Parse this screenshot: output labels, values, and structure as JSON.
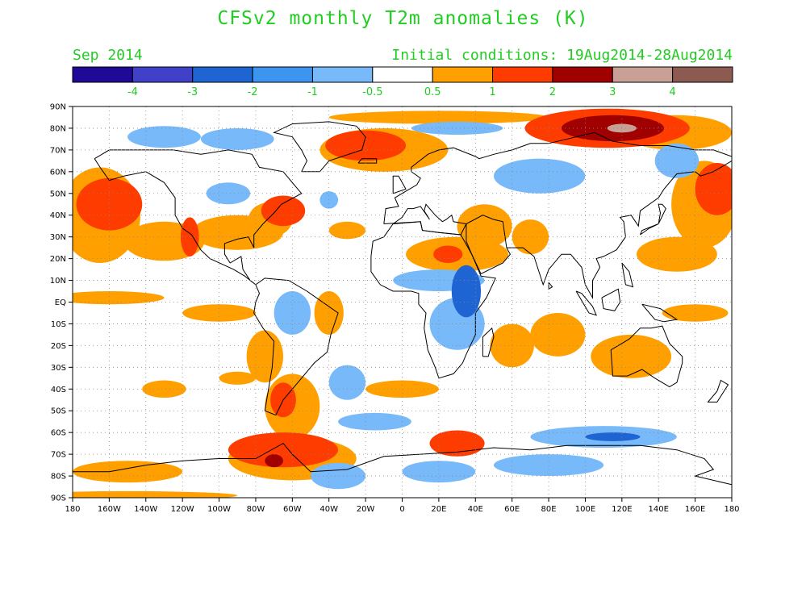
{
  "header": {
    "title": "CFSv2 monthly T2m anomalies (K)",
    "month": "Sep 2014",
    "initial_conditions": "Initial conditions: 19Aug2014-28Aug2014"
  },
  "colorbar": {
    "colors": [
      "#1e0a96",
      "#4040c8",
      "#1e64d2",
      "#3c96f0",
      "#78b9fa",
      "#ffffff",
      "#ffa000",
      "#ff3c00",
      "#a00000",
      "#c8a096",
      "#8c5a50"
    ],
    "labels": [
      "-4",
      "-3",
      "-2",
      "-1",
      "-0.5",
      "0.5",
      "1",
      "2",
      "3",
      "4"
    ],
    "label_color": "#22cc22"
  },
  "axes": {
    "lat_labels": [
      "90N",
      "80N",
      "70N",
      "60N",
      "50N",
      "40N",
      "30N",
      "20N",
      "10N",
      "EQ",
      "10S",
      "20S",
      "30S",
      "40S",
      "50S",
      "60S",
      "70S",
      "80S",
      "90S"
    ],
    "lon_labels": [
      "180",
      "160W",
      "140W",
      "120W",
      "100W",
      "80W",
      "60W",
      "40W",
      "20W",
      "0",
      "20E",
      "40E",
      "60E",
      "80E",
      "100E",
      "120E",
      "140E",
      "160E",
      "180"
    ]
  },
  "anomaly_regions": [
    {
      "lon": -160,
      "lat": 45,
      "rx": 18,
      "ry": 12,
      "level": 2
    },
    {
      "lon": -165,
      "lat": 40,
      "rx": 22,
      "ry": 22,
      "level": 1
    },
    {
      "lon": -130,
      "lat": 28,
      "rx": 22,
      "ry": 9,
      "level": 1
    },
    {
      "lon": -116,
      "lat": 30,
      "rx": 5,
      "ry": 9,
      "level": 2
    },
    {
      "lon": -90,
      "lat": 32,
      "rx": 25,
      "ry": 8,
      "level": 1
    },
    {
      "lon": -65,
      "lat": 42,
      "rx": 12,
      "ry": 7,
      "level": 2
    },
    {
      "lon": -72,
      "lat": 38,
      "rx": 12,
      "ry": 8,
      "level": 1
    },
    {
      "lon": -30,
      "lat": 33,
      "rx": 10,
      "ry": 4,
      "level": 1
    },
    {
      "lon": -20,
      "lat": 72,
      "rx": 22,
      "ry": 7,
      "level": 2
    },
    {
      "lon": -10,
      "lat": 70,
      "rx": 35,
      "ry": 10,
      "level": 1
    },
    {
      "lon": 20,
      "lat": 85,
      "rx": 60,
      "ry": 3,
      "level": 1
    },
    {
      "lon": 115,
      "lat": 80,
      "rx": 28,
      "ry": 6,
      "level": 3
    },
    {
      "lon": 112,
      "lat": 80,
      "rx": 45,
      "ry": 9,
      "level": 2
    },
    {
      "lon": 120,
      "lat": 80,
      "rx": 8,
      "ry": 2,
      "level": 4
    },
    {
      "lon": 150,
      "lat": 78,
      "rx": 30,
      "ry": 8,
      "level": 1
    },
    {
      "lon": 172,
      "lat": 52,
      "rx": 12,
      "ry": 12,
      "level": 2
    },
    {
      "lon": 165,
      "lat": 45,
      "rx": 18,
      "ry": 20,
      "level": 1
    },
    {
      "lon": 150,
      "lat": 22,
      "rx": 22,
      "ry": 8,
      "level": 1
    },
    {
      "lon": 30,
      "lat": 22,
      "rx": 28,
      "ry": 8,
      "level": 1
    },
    {
      "lon": 25,
      "lat": 22,
      "rx": 8,
      "ry": 4,
      "level": 2
    },
    {
      "lon": 45,
      "lat": 35,
      "rx": 15,
      "ry": 10,
      "level": 1
    },
    {
      "lon": 70,
      "lat": 30,
      "rx": 10,
      "ry": 8,
      "level": 1
    },
    {
      "lon": 60,
      "lat": -20,
      "rx": 12,
      "ry": 10,
      "level": 1
    },
    {
      "lon": 85,
      "lat": -15,
      "rx": 15,
      "ry": 10,
      "level": 1
    },
    {
      "lon": 125,
      "lat": -25,
      "rx": 22,
      "ry": 10,
      "level": 1
    },
    {
      "lon": 160,
      "lat": -5,
      "rx": 18,
      "ry": 4,
      "level": 1
    },
    {
      "lon": -160,
      "lat": 2,
      "rx": 30,
      "ry": 3,
      "level": 1
    },
    {
      "lon": -100,
      "lat": -5,
      "rx": 20,
      "ry": 4,
      "level": 1
    },
    {
      "lon": -75,
      "lat": -25,
      "rx": 10,
      "ry": 12,
      "level": 1
    },
    {
      "lon": -65,
      "lat": -45,
      "rx": 7,
      "ry": 8,
      "level": 2
    },
    {
      "lon": -60,
      "lat": -48,
      "rx": 15,
      "ry": 15,
      "level": 1
    },
    {
      "lon": -40,
      "lat": -5,
      "rx": 8,
      "ry": 10,
      "level": 1
    },
    {
      "lon": -130,
      "lat": -40,
      "rx": 12,
      "ry": 4,
      "level": 1
    },
    {
      "lon": -90,
      "lat": -35,
      "rx": 10,
      "ry": 3,
      "level": 1
    },
    {
      "lon": 30,
      "lat": -65,
      "rx": 15,
      "ry": 6,
      "level": 2
    },
    {
      "lon": 0,
      "lat": -40,
      "rx": 20,
      "ry": 4,
      "level": 1
    },
    {
      "lon": -65,
      "lat": -68,
      "rx": 30,
      "ry": 8,
      "level": 2
    },
    {
      "lon": -60,
      "lat": -72,
      "rx": 35,
      "ry": 10,
      "level": 1
    },
    {
      "lon": -70,
      "lat": -73,
      "rx": 5,
      "ry": 3,
      "level": 3
    },
    {
      "lon": -150,
      "lat": -78,
      "rx": 30,
      "ry": 5,
      "level": 1
    },
    {
      "lon": -150,
      "lat": -89,
      "rx": 60,
      "ry": 2,
      "level": 1
    },
    {
      "lon": -130,
      "lat": 76,
      "rx": 20,
      "ry": 5,
      "level": -1
    },
    {
      "lon": -90,
      "lat": 75,
      "rx": 20,
      "ry": 5,
      "level": -1
    },
    {
      "lon": -95,
      "lat": 50,
      "rx": 12,
      "ry": 5,
      "level": -1
    },
    {
      "lon": -40,
      "lat": 47,
      "rx": 5,
      "ry": 4,
      "level": -1
    },
    {
      "lon": 30,
      "lat": 80,
      "rx": 25,
      "ry": 3,
      "level": -1
    },
    {
      "lon": 75,
      "lat": 58,
      "rx": 25,
      "ry": 8,
      "level": -1
    },
    {
      "lon": 150,
      "lat": 65,
      "rx": 12,
      "ry": 8,
      "level": -1
    },
    {
      "lon": 20,
      "lat": 10,
      "rx": 25,
      "ry": 5,
      "level": -1
    },
    {
      "lon": 35,
      "lat": 5,
      "rx": 8,
      "ry": 12,
      "level": -2
    },
    {
      "lon": 30,
      "lat": -10,
      "rx": 15,
      "ry": 12,
      "level": -1
    },
    {
      "lon": -60,
      "lat": -5,
      "rx": 10,
      "ry": 10,
      "level": -1
    },
    {
      "lon": -30,
      "lat": -37,
      "rx": 10,
      "ry": 8,
      "level": -1
    },
    {
      "lon": -15,
      "lat": -55,
      "rx": 20,
      "ry": 4,
      "level": -1
    },
    {
      "lon": 110,
      "lat": -62,
      "rx": 40,
      "ry": 5,
      "level": -1
    },
    {
      "lon": 115,
      "lat": -62,
      "rx": 15,
      "ry": 2,
      "level": -2
    },
    {
      "lon": 80,
      "lat": -75,
      "rx": 30,
      "ry": 5,
      "level": -1
    },
    {
      "lon": -35,
      "lat": -80,
      "rx": 15,
      "ry": 6,
      "level": -1
    },
    {
      "lon": 20,
      "lat": -78,
      "rx": 20,
      "ry": 5,
      "level": -1
    }
  ]
}
